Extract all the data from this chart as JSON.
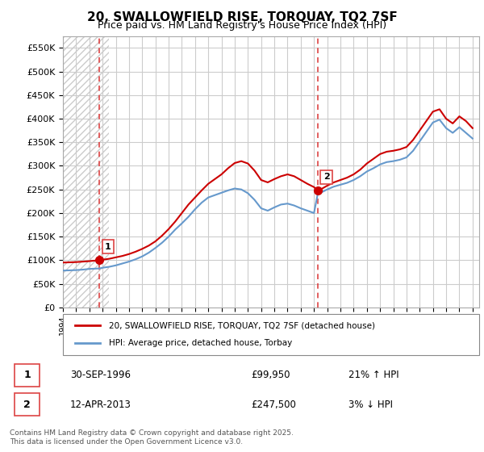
{
  "title": "20, SWALLOWFIELD RISE, TORQUAY, TQ2 7SF",
  "subtitle": "Price paid vs. HM Land Registry's House Price Index (HPI)",
  "legend_entry1": "20, SWALLOWFIELD RISE, TORQUAY, TQ2 7SF (detached house)",
  "legend_entry2": "HPI: Average price, detached house, Torbay",
  "marker1_label": "1",
  "marker2_label": "2",
  "marker1_date": "30-SEP-1996",
  "marker1_price": "£99,950",
  "marker1_hpi": "21% ↑ HPI",
  "marker2_date": "12-APR-2013",
  "marker2_price": "£247,500",
  "marker2_hpi": "3% ↓ HPI",
  "footnote": "Contains HM Land Registry data © Crown copyright and database right 2025.\nThis data is licensed under the Open Government Licence v3.0.",
  "xmin": 1994.0,
  "xmax": 2025.5,
  "ymin": 0,
  "ymax": 575000,
  "yticks": [
    0,
    50000,
    100000,
    150000,
    200000,
    250000,
    300000,
    350000,
    400000,
    450000,
    500000,
    550000
  ],
  "ytick_labels": [
    "£0",
    "£50K",
    "£100K",
    "£150K",
    "£200K",
    "£250K",
    "£300K",
    "£350K",
    "£400K",
    "£450K",
    "£500K",
    "£550K"
  ],
  "grid_color": "#cccccc",
  "hatch_color": "#dddddd",
  "red_line_color": "#cc0000",
  "blue_line_color": "#6699cc",
  "marker_color": "#cc0000",
  "dashed_line_color": "#dd4444",
  "marker1_x": 1996.75,
  "marker1_y": 99950,
  "marker2_x": 2013.28,
  "marker2_y": 247500,
  "sale1_x": 1996.75,
  "sale2_x": 2013.28,
  "background_hatch_end": 1997.5,
  "red_line_data_x": [
    1994.0,
    1994.5,
    1995.0,
    1995.5,
    1996.0,
    1996.75,
    1997.0,
    1997.5,
    1998.0,
    1998.5,
    1999.0,
    1999.5,
    2000.0,
    2000.5,
    2001.0,
    2001.5,
    2002.0,
    2002.5,
    2003.0,
    2003.5,
    2004.0,
    2004.5,
    2005.0,
    2005.5,
    2006.0,
    2006.5,
    2007.0,
    2007.5,
    2008.0,
    2008.5,
    2009.0,
    2009.5,
    2010.0,
    2010.5,
    2011.0,
    2011.5,
    2012.0,
    2012.5,
    2013.0,
    2013.28,
    2013.5,
    2014.0,
    2014.5,
    2015.0,
    2015.5,
    2016.0,
    2016.5,
    2017.0,
    2017.5,
    2018.0,
    2018.5,
    2019.0,
    2019.5,
    2020.0,
    2020.5,
    2021.0,
    2021.5,
    2022.0,
    2022.5,
    2023.0,
    2023.5,
    2024.0,
    2024.5,
    2025.0
  ],
  "red_line_data_y": [
    95000,
    95500,
    96000,
    97000,
    98000,
    99950,
    101000,
    103000,
    106000,
    109000,
    113000,
    118000,
    124000,
    131000,
    140000,
    152000,
    166000,
    182000,
    200000,
    218000,
    233000,
    248000,
    262000,
    272000,
    282000,
    295000,
    306000,
    310000,
    305000,
    290000,
    270000,
    265000,
    272000,
    278000,
    282000,
    278000,
    270000,
    262000,
    255000,
    247500,
    250000,
    258000,
    265000,
    270000,
    275000,
    282000,
    292000,
    305000,
    315000,
    325000,
    330000,
    332000,
    335000,
    340000,
    355000,
    375000,
    395000,
    415000,
    420000,
    400000,
    390000,
    405000,
    395000,
    380000
  ],
  "blue_line_data_x": [
    1994.0,
    1994.5,
    1995.0,
    1995.5,
    1996.0,
    1996.75,
    1997.0,
    1997.5,
    1998.0,
    1998.5,
    1999.0,
    1999.5,
    2000.0,
    2000.5,
    2001.0,
    2001.5,
    2002.0,
    2002.5,
    2003.0,
    2003.5,
    2004.0,
    2004.5,
    2005.0,
    2005.5,
    2006.0,
    2006.5,
    2007.0,
    2007.5,
    2008.0,
    2008.5,
    2009.0,
    2009.5,
    2010.0,
    2010.5,
    2011.0,
    2011.5,
    2012.0,
    2012.5,
    2013.0,
    2013.28,
    2013.5,
    2014.0,
    2014.5,
    2015.0,
    2015.5,
    2016.0,
    2016.5,
    2017.0,
    2017.5,
    2018.0,
    2018.5,
    2019.0,
    2019.5,
    2020.0,
    2020.5,
    2021.0,
    2021.5,
    2022.0,
    2022.5,
    2023.0,
    2023.5,
    2024.0,
    2024.5,
    2025.0
  ],
  "blue_line_data_y": [
    78000,
    78500,
    79000,
    80000,
    81500,
    82500,
    84000,
    86000,
    89000,
    93000,
    97000,
    102000,
    108000,
    116000,
    126000,
    137000,
    150000,
    165000,
    178000,
    192000,
    208000,
    222000,
    233000,
    238000,
    243000,
    248000,
    252000,
    250000,
    242000,
    228000,
    210000,
    205000,
    212000,
    218000,
    220000,
    216000,
    210000,
    205000,
    200000,
    240000,
    243000,
    250000,
    256000,
    260000,
    264000,
    270000,
    278000,
    288000,
    295000,
    303000,
    308000,
    310000,
    313000,
    318000,
    332000,
    352000,
    372000,
    392000,
    398000,
    380000,
    370000,
    382000,
    370000,
    358000
  ]
}
